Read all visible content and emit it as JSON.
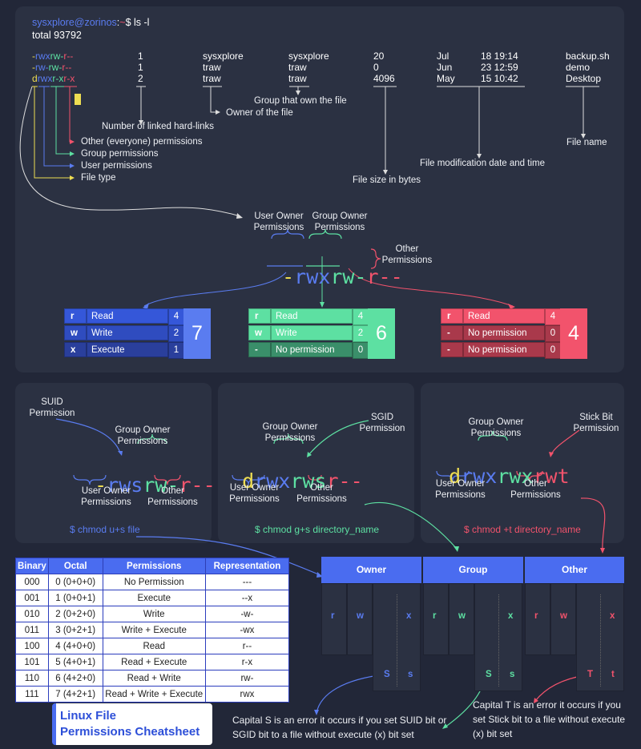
{
  "terminal": {
    "prompt_user": "sysxplore@zorinos",
    "prompt_sep": ":",
    "prompt_tilde": "~",
    "prompt_cmd": "$ ls -l",
    "total": "total 93792",
    "rows": [
      {
        "perm_type": "-",
        "perm_u": "rwx",
        "perm_g": "rw-",
        "perm_o": "r--",
        "links": "1",
        "owner": "sysxplore",
        "group": "sysxplore",
        "size": "20",
        "month": "Jul",
        "date": "18 19:14",
        "name": "backup.sh"
      },
      {
        "perm_type": "-",
        "perm_u": "rw-",
        "perm_g": "rw-",
        "perm_o": "r--",
        "links": "1",
        "owner": "traw",
        "group": "traw",
        "size": "0",
        "month": "Jun",
        "date": "23 12:59",
        "name": "demo"
      },
      {
        "perm_type": "d",
        "perm_u": "rwx",
        "perm_g": "r-x",
        "perm_o": "r-x",
        "links": "2",
        "owner": "traw",
        "group": "traw",
        "size": "4096",
        "month": "May",
        "date": "15 10:42",
        "name": "Desktop"
      }
    ],
    "labels": {
      "group_owns": "Group that own the file",
      "owner": "Owner of the file",
      "hard_links": "Number of linked hard-links",
      "other_perm": "Other (everyone) permissions",
      "group_perm": "Group permissions",
      "user_perm": "User permissions",
      "file_type": "File type",
      "file_name": "File name",
      "mod_date": "File modification date and time",
      "file_size": "File size in bytes"
    }
  },
  "breakdown": {
    "user_owner": "User Owner",
    "permissions": "Permissions",
    "group_owner": "Group Owner",
    "other": "Other",
    "perm_dash": "-",
    "perm_u": "rwx",
    "perm_g": "rw-",
    "perm_o": "r--",
    "boxes": [
      {
        "rows": [
          {
            "l": "r",
            "n": "Read",
            "v": "4"
          },
          {
            "l": "w",
            "n": "Write",
            "v": "2"
          },
          {
            "l": "x",
            "n": "Execute",
            "v": "1"
          }
        ],
        "total": "7"
      },
      {
        "rows": [
          {
            "l": "r",
            "n": "Read",
            "v": "4"
          },
          {
            "l": "w",
            "n": "Write",
            "v": "2"
          },
          {
            "l": "-",
            "n": "No permission",
            "v": "0"
          }
        ],
        "total": "6"
      },
      {
        "rows": [
          {
            "l": "r",
            "n": "Read",
            "v": "4"
          },
          {
            "l": "-",
            "n": "No permission",
            "v": "0"
          },
          {
            "l": "-",
            "n": "No permission",
            "v": "0"
          }
        ],
        "total": "4"
      }
    ]
  },
  "special": {
    "suid": {
      "title1": "SUID",
      "title2": "Permission",
      "p1": "-",
      "p2": "rws",
      "p3": "rw-",
      "p4": "r--",
      "cmd": "$ chmod u+s file"
    },
    "sgid": {
      "title1": "SGID",
      "title2": "Permission",
      "p1": "d",
      "p2": "rwx",
      "p3": "rws",
      "p4": "r--",
      "cmd": "$ chmod g+s directory_name"
    },
    "sticky": {
      "title1": "Stick Bit",
      "title2": "Permission",
      "p1": "d",
      "p2": "rwx",
      "p3": "rwx",
      "p4": "rwt",
      "cmd": "$ chmod +t directory_name"
    },
    "group_owner": "Group Owner",
    "user_owner": "User Owner",
    "permissions": "Permissions",
    "other": "Other"
  },
  "octal_table": {
    "headers": [
      "Binary",
      "Octal",
      "Permissions",
      "Representation"
    ],
    "rows": [
      [
        "000",
        "0 (0+0+0)",
        "No Permission",
        "---"
      ],
      [
        "001",
        "1 (0+0+1)",
        "Execute",
        "--x"
      ],
      [
        "010",
        "2 (0+2+0)",
        "Write",
        "-w-"
      ],
      [
        "011",
        "3 (0+2+1)",
        "Write + Execute",
        "-wx"
      ],
      [
        "100",
        "4 (4+0+0)",
        "Read",
        "r--"
      ],
      [
        "101",
        "5 (4+0+1)",
        "Read + Execute",
        "r-x"
      ],
      [
        "110",
        "6 (4+2+0)",
        "Read + Write",
        "rw-"
      ],
      [
        "111",
        "7 (4+2+1)",
        "Read + Write + Execute",
        "rwx"
      ]
    ]
  },
  "grid": {
    "headers": [
      "Owner",
      "Group",
      "Other"
    ],
    "owner": {
      "r": "r",
      "w": "w",
      "x": "x",
      "cap": "S",
      "low": "s"
    },
    "group": {
      "r": "r",
      "w": "w",
      "x": "x",
      "cap": "S",
      "low": "s"
    },
    "other": {
      "r": "r",
      "w": "w",
      "x": "x",
      "cap": "T",
      "low": "t"
    },
    "note_s": "Capital S is an error it occurs if you set SUID bit or SGID bit to a file without execute (x) bit set",
    "note_t": "Capital T is an error it occurs if you set Stick bit to a file without execute (x) bit set"
  },
  "title": {
    "line1": "Linux File",
    "line2": "Permissions Cheatsheet"
  },
  "colors": {
    "blue": "#5a7cf0",
    "green": "#5de0a2",
    "red": "#f2536c",
    "yellow": "#eedd52",
    "accent": "#4a6cf0"
  }
}
